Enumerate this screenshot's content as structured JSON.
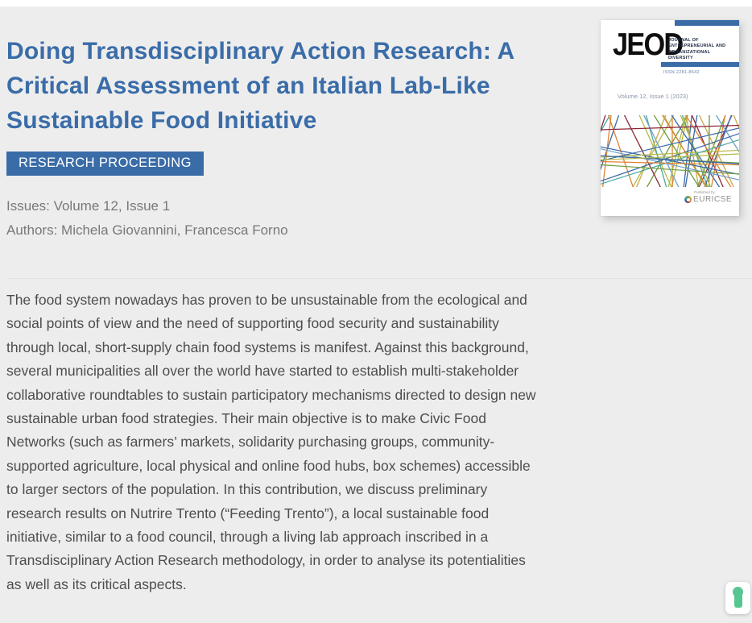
{
  "colors": {
    "background": "#ededed",
    "accent_blue": "#3a6ca8",
    "meta_gray": "#787878",
    "body_gray": "#4d4d4d",
    "green_icon": "#57c691"
  },
  "header": {
    "title": "Doing Transdisciplinary Action Research: A Critical Assessment of an Italian Lab-Like Sustainable Food Initiative",
    "badge_label": "RESEARCH PROCEEDING"
  },
  "meta": {
    "issues": "Issues: Volume 12, Issue 1",
    "authors": "Authors: Michela Giovannini, Francesca Forno"
  },
  "abstract": {
    "text": "The food system nowadays has proven to be unsustainable from the ecological and social points of view and the need of supporting food security and sustainability through local, short-supply chain food systems is manifest. Against this background, several municipalities all over the world have started to establish multi-stakeholder collaborative roundtables to sustain participatory mechanisms directed to design new sustainable urban food strategies. Their main objective is to make Civic Food Networks (such as farmers’ markets, solidarity purchasing groups, community-supported agriculture, local physical and online food hubs, box schemes) accessible to larger sectors of the population. In this contribution, we discuss preliminary research results on Nutrire Trento (“Feeding Trento”), a local sustainable food initiative, similar to a food council, through a living lab approach inscribed in a Transdisciplinary Action Research methodology, in order to analyse its potentialities as well as its critical aspects."
  },
  "journal_cover": {
    "logo_text": "JEOD",
    "journal_name_lines": [
      "JOURNAL OF",
      "ENTREPRENEURIAL AND",
      "ORGANIZATIONAL",
      "DIVERSITY"
    ],
    "issn_text": "ISSN 2281-8642",
    "volume_text": "Volume 12, Issue 1 (2023)",
    "published_by_text": "Published by",
    "publisher_text": "EURICSE",
    "art_palette": [
      "#8d2637",
      "#b5b944",
      "#3a68a8",
      "#4aa8a0",
      "#de8434",
      "#6fa3cc",
      "#6d9a3c",
      "#caa84a"
    ]
  }
}
